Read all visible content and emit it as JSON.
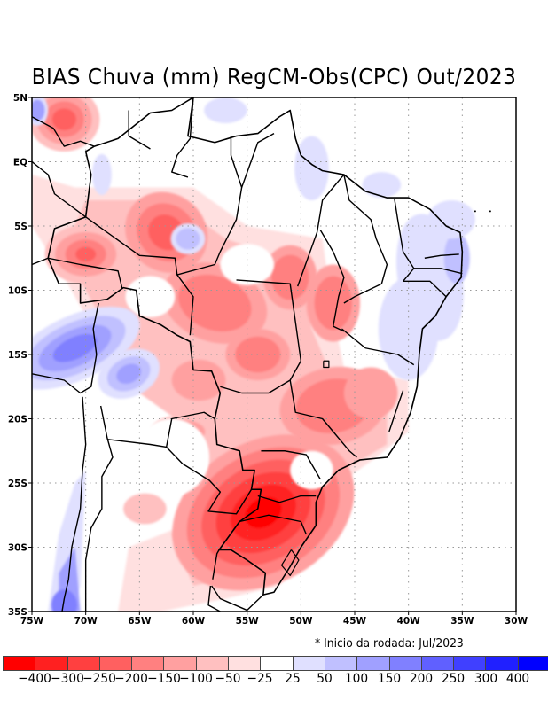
{
  "title": "BIAS Chuva (mm) RegCM-Obs(CPC) Out/2023",
  "note": "* Inicio da rodada: Jul/2023",
  "chart_data": {
    "type": "heatmap",
    "title": "BIAS Chuva (mm) RegCM-Obs(CPC) Out/2023",
    "variable": "Precipitation bias (mm), RegCM minus CPC observations",
    "period": "Out/2023",
    "run_start": "Jul/2023",
    "lon_range": [
      -75,
      -30
    ],
    "lat_range": [
      -35,
      5
    ],
    "x_ticks": [
      "75W",
      "70W",
      "65W",
      "60W",
      "55W",
      "50W",
      "45W",
      "40W",
      "35W",
      "30W"
    ],
    "y_ticks": [
      "5N",
      "EQ",
      "5S",
      "10S",
      "15S",
      "20S",
      "25S",
      "30S",
      "35S"
    ],
    "grid": true,
    "colorbar": {
      "levels": [
        "-400",
        "-300",
        "-250",
        "-200",
        "-150",
        "-100",
        "-50",
        "-25",
        "25",
        "50",
        "100",
        "150",
        "200",
        "250",
        "300",
        "400"
      ],
      "colors": [
        "#ff0000",
        "#ff2020",
        "#ff4040",
        "#ff6060",
        "#ff8080",
        "#ffa0a0",
        "#ffc0c0",
        "#ffe0e0",
        "#ffffff",
        "#e0e0ff",
        "#c0c0ff",
        "#a0a0ff",
        "#8080ff",
        "#6060ff",
        "#4040ff",
        "#2020ff",
        "#0000ff"
      ],
      "placement": "bottom"
    },
    "features": [
      {
        "region": "South Brazil / Paraná / Santa Catarina / RS north",
        "lon": -53,
        "lat": -27,
        "bias_class": "-400 to -300",
        "desc": "strongest dry bias (model drier than obs)"
      },
      {
        "region": "Northwest Amazon (near 4N 72W)",
        "lon": -72,
        "lat": 3,
        "bias_class": "-150 to -100"
      },
      {
        "region": "Western Amazon (7S 70W)",
        "lon": -70,
        "lat": -7,
        "bias_class": "-150 to -100"
      },
      {
        "region": "Central Amazon (6S 62W)",
        "lon": -62,
        "lat": -6,
        "bias_class": "-150 to -100"
      },
      {
        "region": "Central Brazil (10S-15S, 50W-60W)",
        "lon": -55,
        "lat": -12,
        "bias_class": "-100 to -50"
      },
      {
        "region": "Southeast Brazil (18S-22S, 45W-50W)",
        "lon": -47,
        "lat": -19,
        "bias_class": "-100 to -50"
      },
      {
        "region": "Peru/Bolivia Andes (13S 75W-65W)",
        "lon": -70,
        "lat": -14,
        "bias_class": "100 to 200",
        "desc": "wet bias"
      },
      {
        "region": "Chilean coast (30S-35S)",
        "lon": -71,
        "lat": -33,
        "bias_class": "50 to 200",
        "desc": "wet bias"
      },
      {
        "region": "Northeast Brazil coast",
        "lon": -36,
        "lat": -7,
        "bias_class": "25 to 100",
        "desc": "slight wet bias"
      },
      {
        "region": "Northern Argentina / Uruguay",
        "lon": -60,
        "lat": -32,
        "bias_class": "-50 to -25"
      }
    ]
  }
}
